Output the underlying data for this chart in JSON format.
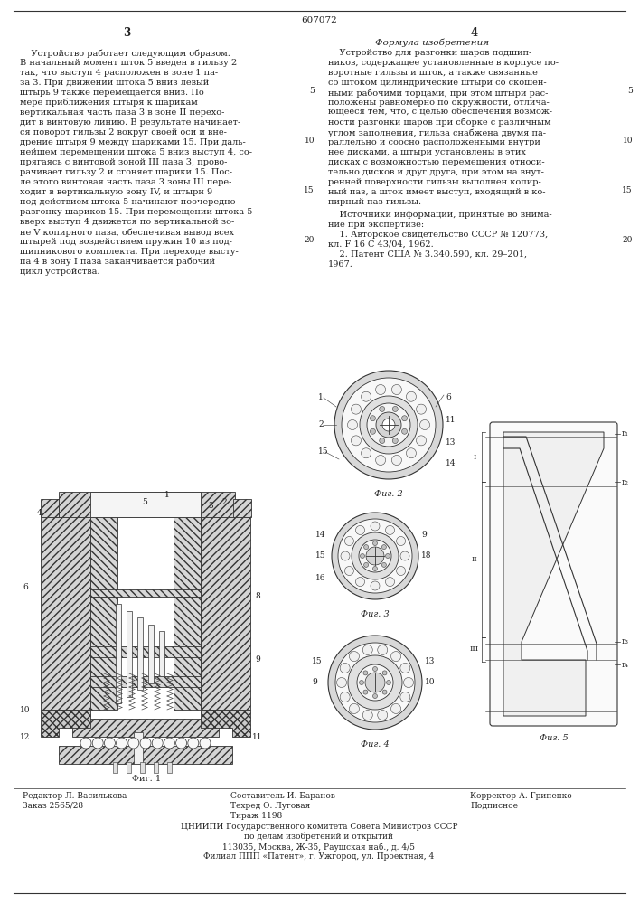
{
  "patent_number": "607072",
  "page_left": "3",
  "page_right": "4",
  "title_right": "Формула изобретения",
  "left_text_lines": [
    "    Устройство работает следующим образом.",
    "В начальный момент шток 5 введен в гильзу 2",
    "так, что выступ 4 расположен в зоне 1 па-",
    "за 3. При движении штока 5 вниз левый",
    "штырь 9 также перемещается вниз. По",
    "мере приближения штыря к шарикам",
    "вертикальная часть паза 3 в зоне II перехо-",
    "дит в винтовую линию. В результате начинает-",
    "ся поворот гильзы 2 вокруг своей оси и вне-",
    "дрение штыря 9 между шариками 15. При даль-",
    "нейшем перемещении штока 5 вниз выступ 4, со-",
    "прягаясь с винтовой зоной III паза 3, прово-",
    "рачивает гильзу 2 и сгоняет шарики 15. Пос-",
    "ле этого винтовая часть паза 3 зоны III пере-",
    "ходит в вертикальную зону IV, и штыри 9",
    "под действием штока 5 начинают поочередно",
    "разгонку шариков 15. При перемещении штока 5",
    "вверх выступ 4 движется по вертикальной зо-",
    "не V копирного паза, обеспечивая вывод всех",
    "штырей под воздействием пружин 10 из под-",
    "шипникового комплекта. При переходе высту-",
    "па 4 в зону I паза заканчивается рабочий",
    "цикл устройства."
  ],
  "right_text_lines": [
    "    Устройство для разгонки шаров подшип-",
    "ников, содержащее установленные в корпусе по-",
    "воротные гильзы и шток, а также связанные",
    "со штоком цилиндрические штыри со скошен-",
    "ными рабочими торцами, при этом штыри рас-",
    "положены равномерно по окружности, отлича-",
    "ющееся тем, что, с целью обеспечения возмож-",
    "ности разгонки шаров при сборке с различным",
    "углом заполнения, гильза снабжена двумя па-",
    "раллельно и соосно расположенными внутри",
    "нее дисками, а штыри установлены в этих",
    "дисках с возможностью перемещения относи-",
    "тельно дисков и друг друга, при этом на внут-",
    "ренней поверхности гильзы выполнен копир-",
    "ный паз, а шток имеет выступ, входящий в ко-",
    "пирный паз гильзы."
  ],
  "sources_lines": [
    "    Источники информации, принятые во внима-",
    "ние при экспертизе:",
    "    1. Авторское свидетельство СССР № 120773,",
    "кл. F 16 С 43/04, 1962.",
    "    2. Патент США № 3.340.590, кл. 29–201,",
    "1967."
  ],
  "line_numbers": [
    "5",
    "10",
    "15",
    "20"
  ],
  "bottom_left1": "Редактор Л. Василькова",
  "bottom_left2": "Заказ 2565/28",
  "bottom_mid1": "Составитель И. Баранов",
  "bottom_mid2": "Техред О. Луговая",
  "bottom_mid3": "Тираж 1198",
  "bottom_right1": "Корректор А. Грипенко",
  "bottom_right2": "Подписное",
  "footer1": "ЦНИИПИ Государственного комитета Совета Министров СССР",
  "footer2": "по делам изобретений и открытий",
  "footer3": "113035, Москва, Ж-35, Раушская наб., д. 4/5",
  "footer4": "Филиал ППП «Патент», г. Ужгород, ул. Проектная, 4",
  "bg_color": "#ffffff",
  "text_color": "#222222",
  "hatch_color": "#555555"
}
